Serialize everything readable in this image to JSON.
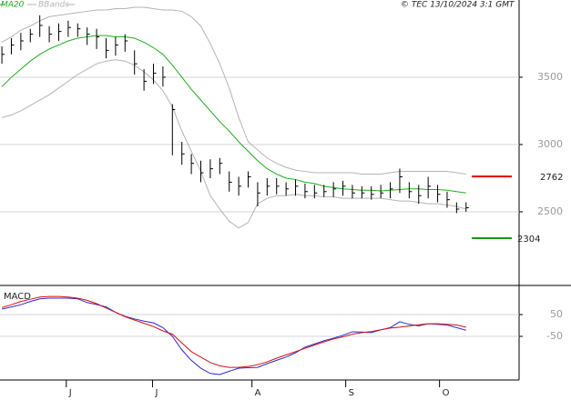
{
  "header": {
    "copyright": "© TEC 13/10/2024 3:1 GMT"
  },
  "chart_data": [
    {
      "type": "ohlc",
      "x": [
        0,
        1,
        2,
        3,
        4,
        5,
        6,
        7,
        8,
        9,
        10,
        11,
        12,
        13,
        14,
        15,
        16,
        17,
        18,
        19,
        20,
        21,
        22,
        23,
        24,
        25,
        26,
        27,
        28,
        29,
        30,
        31,
        32,
        33,
        34,
        35,
        36,
        37,
        38,
        39,
        40,
        41,
        42,
        43,
        44,
        45,
        46,
        47,
        48,
        49
      ],
      "high": [
        3730,
        3790,
        3830,
        3860,
        3960,
        3880,
        3900,
        3920,
        3900,
        3870,
        3860,
        3790,
        3800,
        3820,
        3700,
        3560,
        3600,
        3580,
        3300,
        3020,
        2930,
        2880,
        2890,
        2900,
        2800,
        2760,
        2800,
        2720,
        2750,
        2750,
        2720,
        2740,
        2710,
        2700,
        2700,
        2720,
        2730,
        2700,
        2690,
        2690,
        2700,
        2720,
        2820,
        2720,
        2700,
        2760,
        2700,
        2650,
        2570,
        2570
      ],
      "low": [
        3600,
        3670,
        3700,
        3760,
        3800,
        3760,
        3770,
        3800,
        3800,
        3740,
        3710,
        3640,
        3660,
        3690,
        3520,
        3400,
        3450,
        3430,
        2920,
        2850,
        2780,
        2720,
        2750,
        2780,
        2650,
        2620,
        2680,
        2540,
        2620,
        2630,
        2620,
        2620,
        2600,
        2600,
        2610,
        2610,
        2620,
        2600,
        2600,
        2590,
        2600,
        2600,
        2640,
        2600,
        2560,
        2600,
        2570,
        2530,
        2490,
        2500
      ],
      "close": [
        3670,
        3740,
        3770,
        3820,
        3885,
        3820,
        3840,
        3870,
        3860,
        3820,
        3800,
        3700,
        3740,
        3770,
        3600,
        3470,
        3530,
        3500,
        3260,
        2930,
        2860,
        2790,
        2820,
        2860,
        2720,
        2690,
        2760,
        2640,
        2690,
        2690,
        2670,
        2690,
        2650,
        2640,
        2650,
        2670,
        2690,
        2640,
        2640,
        2630,
        2640,
        2670,
        2760,
        2650,
        2620,
        2690,
        2630,
        2590,
        2520,
        2530
      ],
      "color": "#000000",
      "series": [
        {
          "name": "MA20",
          "color": "#1fae1f",
          "values": [
            3430,
            3500,
            3560,
            3620,
            3670,
            3710,
            3740,
            3770,
            3790,
            3800,
            3810,
            3810,
            3800,
            3800,
            3790,
            3760,
            3720,
            3670,
            3590,
            3500,
            3410,
            3330,
            3250,
            3170,
            3100,
            3020,
            2950,
            2880,
            2820,
            2780,
            2750,
            2740,
            2720,
            2710,
            2690,
            2680,
            2670,
            2665,
            2660,
            2660,
            2655,
            2660,
            2665,
            2670,
            2670,
            2665,
            2665,
            2660,
            2650,
            2640
          ]
        },
        {
          "name": "BBands",
          "color": "#b4b4b4",
          "upper": [
            3760,
            3800,
            3850,
            3880,
            3920,
            3950,
            3960,
            3970,
            3980,
            3990,
            4000,
            4000,
            4010,
            4010,
            4020,
            4020,
            4010,
            4000,
            4000,
            3990,
            3950,
            3880,
            3750,
            3600,
            3420,
            3200,
            3020,
            2960,
            2900,
            2860,
            2830,
            2810,
            2800,
            2790,
            2790,
            2790,
            2790,
            2790,
            2780,
            2780,
            2780,
            2790,
            2800,
            2800,
            2800,
            2800,
            2800,
            2800,
            2790,
            2780
          ],
          "lower": [
            3200,
            3220,
            3250,
            3290,
            3330,
            3370,
            3420,
            3470,
            3520,
            3560,
            3600,
            3620,
            3630,
            3620,
            3590,
            3540,
            3480,
            3400,
            3280,
            3100,
            2950,
            2800,
            2620,
            2520,
            2430,
            2380,
            2420,
            2560,
            2600,
            2620,
            2620,
            2630,
            2620,
            2620,
            2610,
            2610,
            2600,
            2600,
            2600,
            2600,
            2600,
            2590,
            2580,
            2580,
            2570,
            2560,
            2560,
            2550,
            2540,
            2520
          ]
        }
      ],
      "levels": [
        {
          "value": 2762,
          "color": "#dd0000"
        },
        {
          "value": 2304,
          "color": "#119911"
        }
      ],
      "xlim": [
        -0.2,
        54.6
      ],
      "xticks": [
        {
          "value": 6.8,
          "label": "J"
        },
        {
          "value": 15.9,
          "label": "J"
        },
        {
          "value": 26.4,
          "label": "A"
        },
        {
          "value": 36.3,
          "label": "S"
        },
        {
          "value": 46.2,
          "label": "O"
        }
      ],
      "ylim": [
        1966,
        4074
      ],
      "yticks": [
        2500,
        3000,
        3500
      ],
      "grid": true
    },
    {
      "type": "line",
      "title": "MACD",
      "series": [
        {
          "color": "#2a2ad0",
          "values": [
            75,
            85,
            95,
            110,
            122,
            125,
            125,
            125,
            122,
            105,
            96,
            85,
            60,
            42,
            30,
            20,
            12,
            -10,
            -50,
            -112,
            -160,
            -196,
            -220,
            -225,
            -210,
            -196,
            -194,
            -192,
            -175,
            -160,
            -145,
            -125,
            -100,
            -85,
            -70,
            -58,
            -45,
            -29,
            -30,
            -33,
            -20,
            -10,
            17,
            5,
            -2,
            8,
            5,
            2,
            -10,
            -22
          ]
        },
        {
          "color": "#d01010",
          "values": [
            82,
            95,
            110,
            120,
            130,
            133,
            133,
            130,
            125,
            115,
            100,
            80,
            60,
            40,
            25,
            10,
            -5,
            -25,
            -40,
            -80,
            -120,
            -145,
            -170,
            -185,
            -192,
            -192,
            -188,
            -180,
            -167,
            -150,
            -135,
            -120,
            -105,
            -90,
            -75,
            -62,
            -52,
            -40,
            -33,
            -28,
            -20,
            -12,
            -8,
            -2,
            3,
            8,
            8,
            5,
            2,
            -8
          ]
        }
      ],
      "ylim": [
        -250,
        175
      ],
      "yticks": [
        -50,
        50
      ],
      "grid": true
    }
  ]
}
